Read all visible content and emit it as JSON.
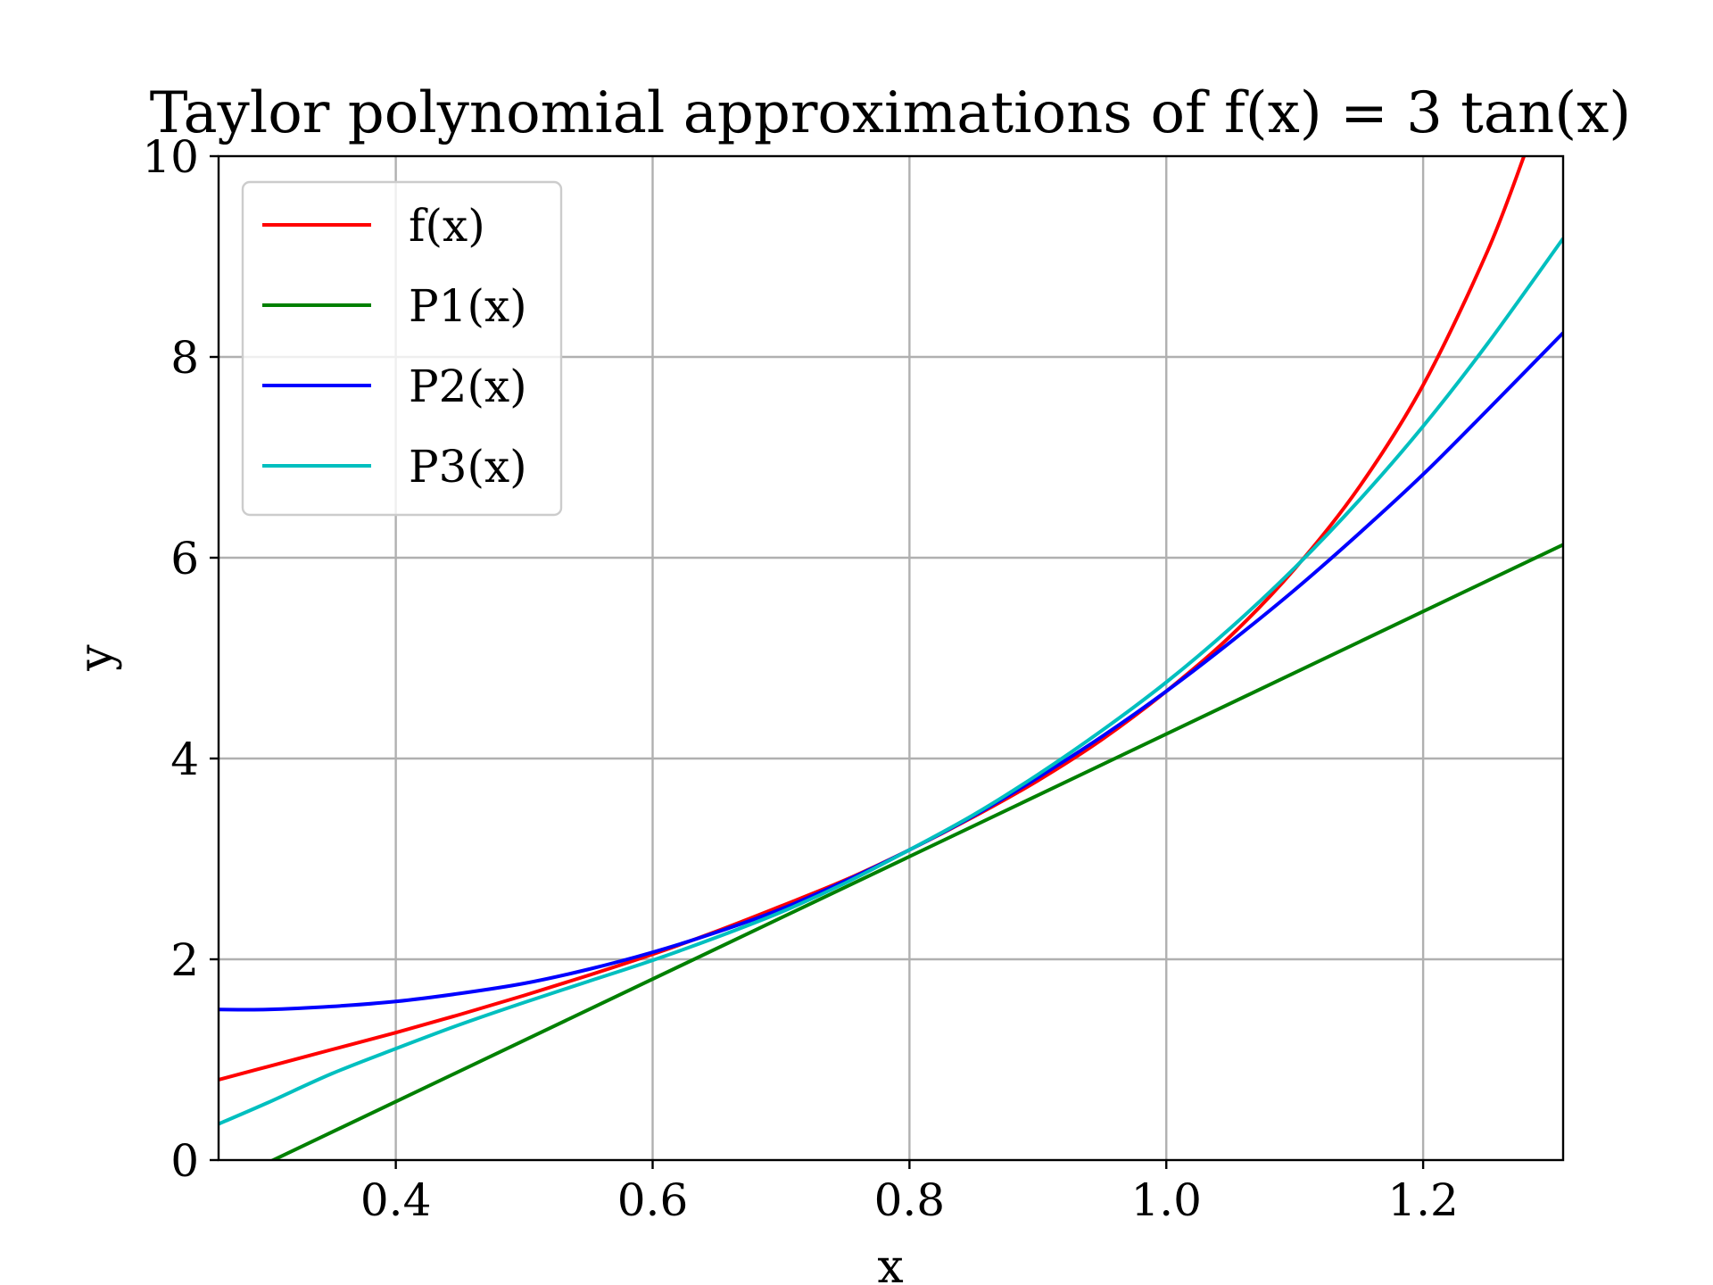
{
  "chart_data": {
    "type": "line",
    "title": "Taylor polynomial approximations of f(x) = 3 tan(x)",
    "xlabel": "x",
    "ylabel": "y",
    "xlim": [
      0.262,
      1.309
    ],
    "ylim": [
      0,
      10
    ],
    "xticks": [
      0.4,
      0.6,
      0.8,
      1.0,
      1.2
    ],
    "xtick_labels": [
      "0.4",
      "0.6",
      "0.8",
      "1.0",
      "1.2"
    ],
    "yticks": [
      0,
      2,
      4,
      6,
      8,
      10
    ],
    "ytick_labels": [
      "0",
      "2",
      "4",
      "6",
      "8",
      "10"
    ],
    "grid": true,
    "legend_position": "top-left",
    "series": [
      {
        "name": "f(x)",
        "color": "#ff0000",
        "x": [
          0.262,
          0.3,
          0.35,
          0.4,
          0.45,
          0.5,
          0.55,
          0.6,
          0.65,
          0.7,
          0.75,
          0.8,
          0.85,
          0.9,
          0.95,
          1.0,
          1.05,
          1.1,
          1.15,
          1.2,
          1.25,
          1.28
        ],
        "y": [
          0.8,
          0.93,
          1.1,
          1.27,
          1.45,
          1.64,
          1.84,
          2.05,
          2.28,
          2.53,
          2.79,
          3.09,
          3.42,
          3.78,
          4.19,
          4.67,
          5.22,
          5.89,
          6.7,
          7.72,
          9.05,
          10.05
        ]
      },
      {
        "name": "P1(x)",
        "color": "#008000",
        "x": [
          0.262,
          1.309
        ],
        "y": [
          -0.26,
          6.13
        ]
      },
      {
        "name": "P2(x)",
        "color": "#0000ff",
        "x": [
          0.262,
          0.3,
          0.35,
          0.4,
          0.45,
          0.5,
          0.55,
          0.6,
          0.65,
          0.7,
          0.75,
          0.8,
          0.85,
          0.9,
          0.95,
          1.0,
          1.05,
          1.1,
          1.15,
          1.2,
          1.25,
          1.309
        ],
        "y": [
          1.5,
          1.5,
          1.53,
          1.58,
          1.66,
          1.76,
          1.9,
          2.07,
          2.27,
          2.5,
          2.78,
          3.09,
          3.43,
          3.81,
          4.22,
          4.67,
          5.16,
          5.68,
          6.24,
          6.83,
          7.47,
          8.24
        ]
      },
      {
        "name": "P3(x)",
        "color": "#00bfbf",
        "x": [
          0.262,
          0.3,
          0.35,
          0.4,
          0.45,
          0.5,
          0.55,
          0.6,
          0.65,
          0.7,
          0.75,
          0.8,
          0.85,
          0.9,
          0.95,
          1.0,
          1.05,
          1.1,
          1.15,
          1.2,
          1.25,
          1.309
        ],
        "y": [
          0.36,
          0.57,
          0.86,
          1.11,
          1.35,
          1.57,
          1.78,
          1.99,
          2.22,
          2.47,
          2.76,
          3.09,
          3.44,
          3.84,
          4.28,
          4.76,
          5.3,
          5.9,
          6.57,
          7.31,
          8.13,
          9.18
        ]
      }
    ]
  }
}
